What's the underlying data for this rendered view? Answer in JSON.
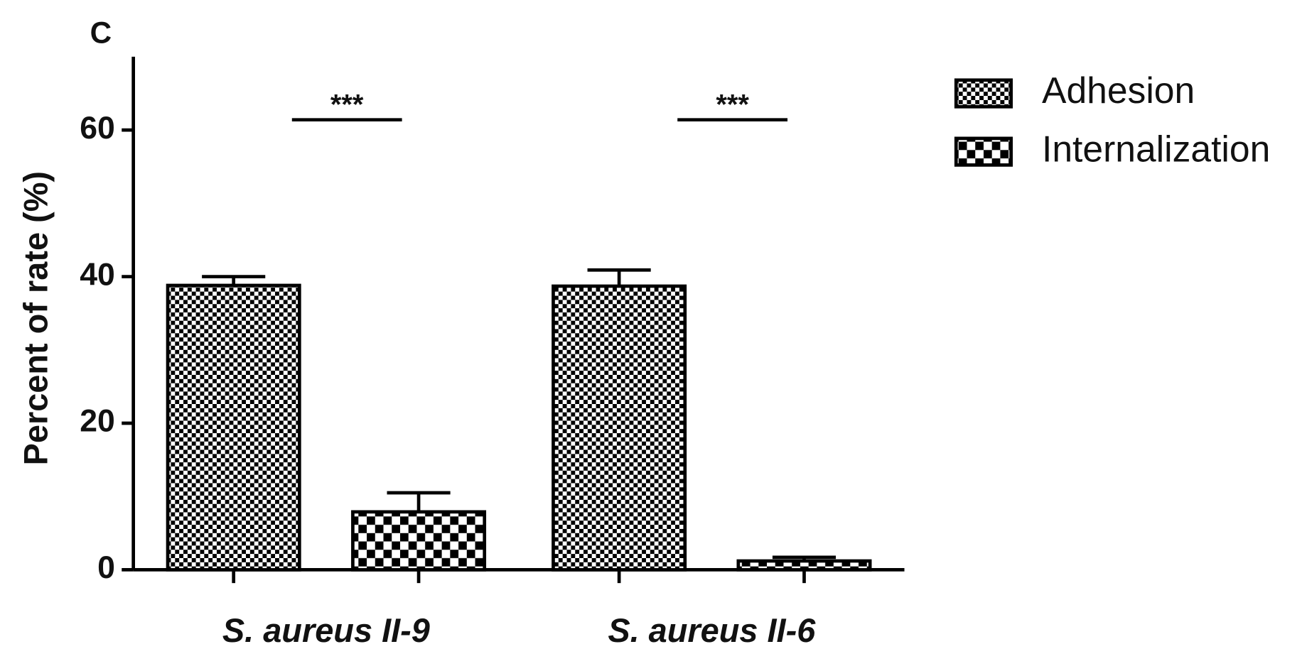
{
  "chart_data": {
    "type": "bar",
    "panel_label": "C",
    "y_label": "Percent of rate (%)",
    "categories": [
      "S. aureus II-9",
      "S. aureus II-6"
    ],
    "series": [
      {
        "name": "Adhesion",
        "color": "#000000",
        "pattern": "fine-checker",
        "values": [
          38.8,
          38.7
        ],
        "errors": [
          1.2,
          2.2
        ]
      },
      {
        "name": "Internalization",
        "color": "#000000",
        "pattern": "coarse-checker",
        "values": [
          7.9,
          1.2
        ],
        "errors": [
          2.6,
          0.5
        ]
      }
    ],
    "ylim": [
      0,
      70
    ],
    "yticks": [
      0,
      20,
      40,
      60
    ],
    "annotations": [
      {
        "text": "***",
        "category": "S. aureus II-9",
        "y": 61.4
      },
      {
        "text": "***",
        "category": "S. aureus II-6",
        "y": 61.4
      }
    ],
    "legend": "top-right",
    "grid": false
  }
}
